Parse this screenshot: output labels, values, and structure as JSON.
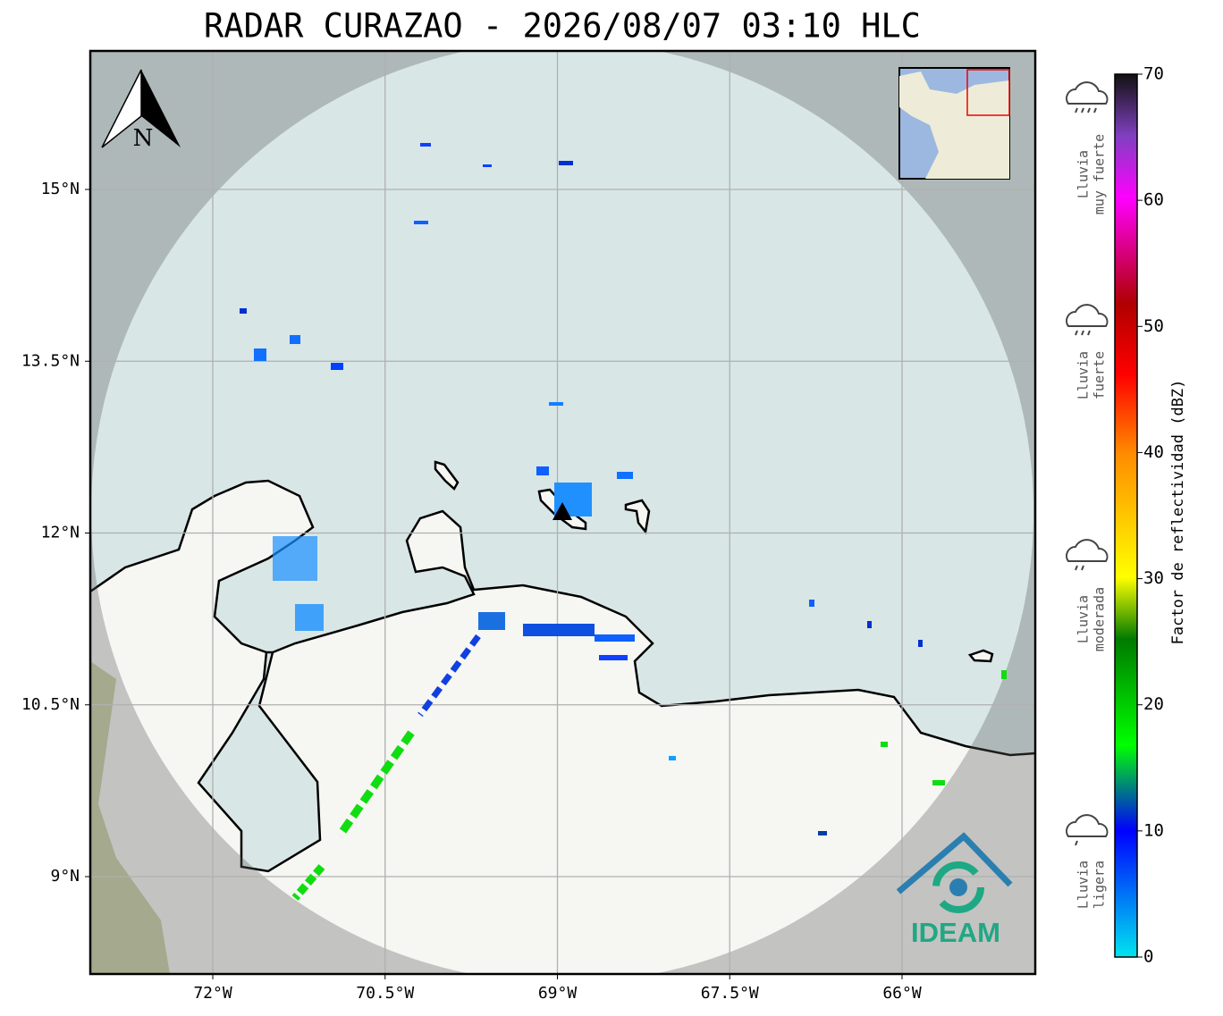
{
  "title": "RADAR CURAZAO - 2026/08/07 03:10 HLC",
  "map": {
    "north_label": "N",
    "logo_text": "IDEAM",
    "lat_ticks": [
      {
        "value": 15,
        "label": "15°N"
      },
      {
        "value": 13.5,
        "label": "13.5°N"
      },
      {
        "value": 12,
        "label": "12°N"
      },
      {
        "value": 10.5,
        "label": "10.5°N"
      },
      {
        "value": 9,
        "label": "9°N"
      }
    ],
    "lon_ticks": [
      {
        "value": -72,
        "label": "72°W"
      },
      {
        "value": -70.5,
        "label": "70.5°W"
      },
      {
        "value": -69,
        "label": "69°W"
      },
      {
        "value": -67.5,
        "label": "67.5°W"
      },
      {
        "value": -66,
        "label": "66°W"
      }
    ]
  },
  "colorbar": {
    "label": "Factor de reflectividad (dBZ)",
    "range": [
      0,
      70
    ],
    "ticks": [
      0,
      10,
      20,
      30,
      40,
      50,
      60,
      70
    ]
  },
  "rain_levels": [
    {
      "lines": [
        "Lluvia",
        "muy fuerte"
      ]
    },
    {
      "lines": [
        "Lluvia",
        "fuerte"
      ]
    },
    {
      "lines": [
        "Lluvia",
        "moderada"
      ]
    },
    {
      "lines": [
        "Lluvia",
        "ligera"
      ]
    }
  ]
}
